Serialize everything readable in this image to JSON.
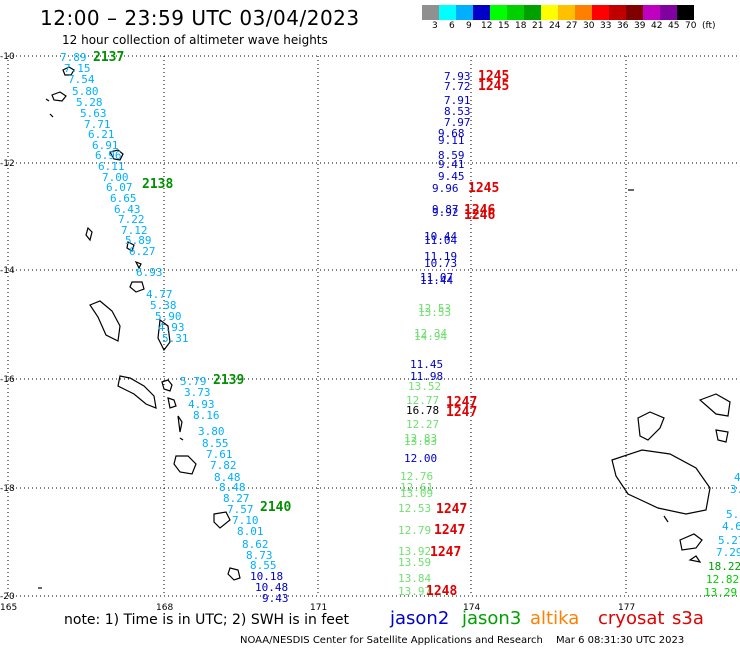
{
  "header": {
    "title": "12:00 – 23:59 UTC 03/04/2023",
    "subtitle": "12 hour collection of altimeter wave heights"
  },
  "colorbar": {
    "colors": [
      "#909090",
      "#00ffff",
      "#00b0ff",
      "#0000c8",
      "#00ff00",
      "#00d000",
      "#00a000",
      "#ffff00",
      "#ffc000",
      "#ff8000",
      "#ff0000",
      "#c00000",
      "#800000",
      "#c000c0",
      "#8000a0",
      "#000000"
    ],
    "labels": [
      "3",
      "6",
      "9",
      "12",
      "15",
      "18",
      "21",
      "24",
      "27",
      "30",
      "33",
      "36",
      "39",
      "42",
      "45",
      "70",
      "(ft)"
    ]
  },
  "axes": {
    "lat_labels": [
      "-10",
      "-12",
      "-14",
      "-16",
      "-18",
      "-20"
    ],
    "lon_labels": [
      "165",
      "168",
      "171",
      "174",
      "177"
    ]
  },
  "tracks": {
    "cyan": [
      "7.89",
      "7.15",
      "7.54",
      "5.80",
      "5.28",
      "5.63",
      "7.71",
      "6.21",
      "6.91",
      "6.96",
      "6.11",
      "7.00",
      "6.07",
      "6.65",
      "6.43",
      "7.22",
      "7.12",
      "5.89",
      "6.27",
      "6.93",
      "4.77",
      "5.38",
      "5.90",
      "4.93",
      "5.31",
      "5.79",
      "3.73",
      "4.93",
      "8.16",
      "3.80",
      "8.55",
      "7.61",
      "7.82",
      "8.48",
      "8.48",
      "8.27",
      "7.57",
      "7.10",
      "8.01",
      "8.62",
      "8.73",
      "8.55",
      "10.18",
      "10.48",
      "9.43"
    ],
    "cyan_right": [
      "4",
      "3.",
      "5.8",
      "4.6",
      "5.27",
      "7.29",
      "18.22",
      "12.82",
      "13.29"
    ],
    "mid": [
      "7.93",
      "7.72",
      "7.91",
      "8.53",
      "7.97",
      "9.68",
      "9.11",
      "8.59",
      "9.41",
      "9.45",
      "9.96",
      "9.87",
      "9.92",
      "10.44",
      "11.04",
      "11.19",
      "10.73",
      "11.07",
      "11.44",
      "12.53",
      "13.53",
      "12.34",
      "14.94",
      "11.45",
      "11.98",
      "13.52",
      "12.77",
      "16.78",
      "12.27",
      "12.83",
      "13.83",
      "12.00",
      "12.76",
      "12.61",
      "13.09",
      "12.53",
      "12.79",
      "13.92",
      "13.59",
      "13.84",
      "13.97"
    ],
    "passes": [
      "2137",
      "2138",
      "2139",
      "2140"
    ],
    "cryosat": [
      "1245",
      "1245",
      "1245",
      "1246",
      "1246",
      "1247",
      "1247",
      "1247",
      "1247",
      "1247",
      "1248"
    ]
  },
  "notes": {
    "text": "note:  1) Time is in UTC;  2) SWH is in feet"
  },
  "legend": [
    "jason2",
    "jason3",
    "altika",
    "cryosat",
    "s3a"
  ],
  "footer": {
    "credit": "NOAA/NESDIS Center for Satellite Applications and Research",
    "timestamp": "Mar  6 08:31:30 UTC 2023"
  }
}
